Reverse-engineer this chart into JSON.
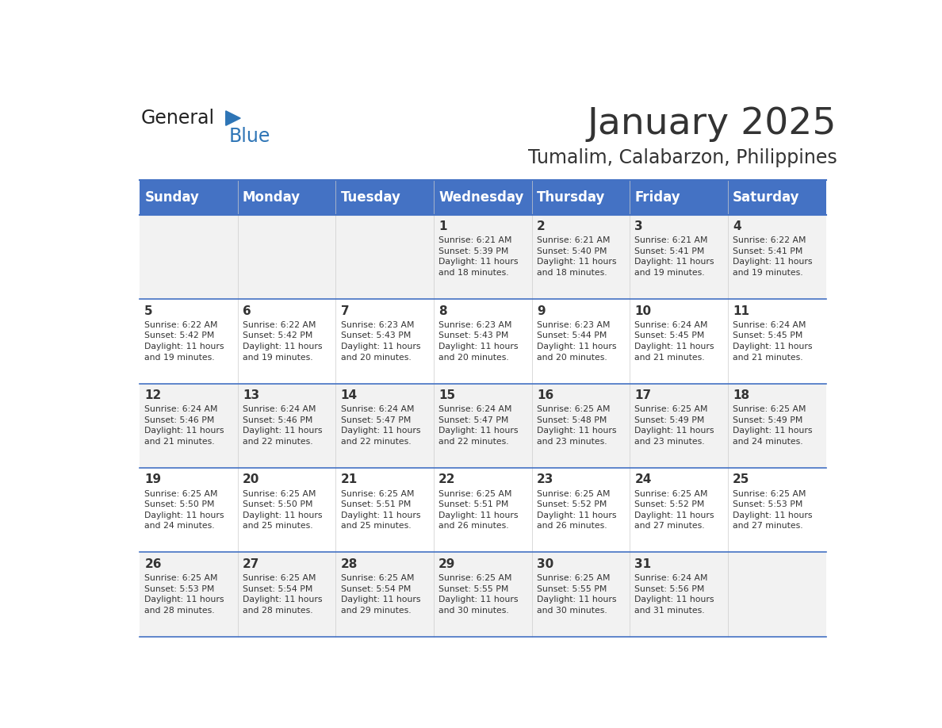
{
  "title": "January 2025",
  "subtitle": "Tumalim, Calabarzon, Philippines",
  "header_bg": "#4472C4",
  "header_text_color": "#FFFFFF",
  "cell_bg_odd": "#F2F2F2",
  "cell_bg_even": "#FFFFFF",
  "border_color": "#4472C4",
  "text_color": "#333333",
  "days_of_week": [
    "Sunday",
    "Monday",
    "Tuesday",
    "Wednesday",
    "Thursday",
    "Friday",
    "Saturday"
  ],
  "weeks": [
    [
      {
        "day": "",
        "info": ""
      },
      {
        "day": "",
        "info": ""
      },
      {
        "day": "",
        "info": ""
      },
      {
        "day": "1",
        "info": "Sunrise: 6:21 AM\nSunset: 5:39 PM\nDaylight: 11 hours\nand 18 minutes."
      },
      {
        "day": "2",
        "info": "Sunrise: 6:21 AM\nSunset: 5:40 PM\nDaylight: 11 hours\nand 18 minutes."
      },
      {
        "day": "3",
        "info": "Sunrise: 6:21 AM\nSunset: 5:41 PM\nDaylight: 11 hours\nand 19 minutes."
      },
      {
        "day": "4",
        "info": "Sunrise: 6:22 AM\nSunset: 5:41 PM\nDaylight: 11 hours\nand 19 minutes."
      }
    ],
    [
      {
        "day": "5",
        "info": "Sunrise: 6:22 AM\nSunset: 5:42 PM\nDaylight: 11 hours\nand 19 minutes."
      },
      {
        "day": "6",
        "info": "Sunrise: 6:22 AM\nSunset: 5:42 PM\nDaylight: 11 hours\nand 19 minutes."
      },
      {
        "day": "7",
        "info": "Sunrise: 6:23 AM\nSunset: 5:43 PM\nDaylight: 11 hours\nand 20 minutes."
      },
      {
        "day": "8",
        "info": "Sunrise: 6:23 AM\nSunset: 5:43 PM\nDaylight: 11 hours\nand 20 minutes."
      },
      {
        "day": "9",
        "info": "Sunrise: 6:23 AM\nSunset: 5:44 PM\nDaylight: 11 hours\nand 20 minutes."
      },
      {
        "day": "10",
        "info": "Sunrise: 6:24 AM\nSunset: 5:45 PM\nDaylight: 11 hours\nand 21 minutes."
      },
      {
        "day": "11",
        "info": "Sunrise: 6:24 AM\nSunset: 5:45 PM\nDaylight: 11 hours\nand 21 minutes."
      }
    ],
    [
      {
        "day": "12",
        "info": "Sunrise: 6:24 AM\nSunset: 5:46 PM\nDaylight: 11 hours\nand 21 minutes."
      },
      {
        "day": "13",
        "info": "Sunrise: 6:24 AM\nSunset: 5:46 PM\nDaylight: 11 hours\nand 22 minutes."
      },
      {
        "day": "14",
        "info": "Sunrise: 6:24 AM\nSunset: 5:47 PM\nDaylight: 11 hours\nand 22 minutes."
      },
      {
        "day": "15",
        "info": "Sunrise: 6:24 AM\nSunset: 5:47 PM\nDaylight: 11 hours\nand 22 minutes."
      },
      {
        "day": "16",
        "info": "Sunrise: 6:25 AM\nSunset: 5:48 PM\nDaylight: 11 hours\nand 23 minutes."
      },
      {
        "day": "17",
        "info": "Sunrise: 6:25 AM\nSunset: 5:49 PM\nDaylight: 11 hours\nand 23 minutes."
      },
      {
        "day": "18",
        "info": "Sunrise: 6:25 AM\nSunset: 5:49 PM\nDaylight: 11 hours\nand 24 minutes."
      }
    ],
    [
      {
        "day": "19",
        "info": "Sunrise: 6:25 AM\nSunset: 5:50 PM\nDaylight: 11 hours\nand 24 minutes."
      },
      {
        "day": "20",
        "info": "Sunrise: 6:25 AM\nSunset: 5:50 PM\nDaylight: 11 hours\nand 25 minutes."
      },
      {
        "day": "21",
        "info": "Sunrise: 6:25 AM\nSunset: 5:51 PM\nDaylight: 11 hours\nand 25 minutes."
      },
      {
        "day": "22",
        "info": "Sunrise: 6:25 AM\nSunset: 5:51 PM\nDaylight: 11 hours\nand 26 minutes."
      },
      {
        "day": "23",
        "info": "Sunrise: 6:25 AM\nSunset: 5:52 PM\nDaylight: 11 hours\nand 26 minutes."
      },
      {
        "day": "24",
        "info": "Sunrise: 6:25 AM\nSunset: 5:52 PM\nDaylight: 11 hours\nand 27 minutes."
      },
      {
        "day": "25",
        "info": "Sunrise: 6:25 AM\nSunset: 5:53 PM\nDaylight: 11 hours\nand 27 minutes."
      }
    ],
    [
      {
        "day": "26",
        "info": "Sunrise: 6:25 AM\nSunset: 5:53 PM\nDaylight: 11 hours\nand 28 minutes."
      },
      {
        "day": "27",
        "info": "Sunrise: 6:25 AM\nSunset: 5:54 PM\nDaylight: 11 hours\nand 28 minutes."
      },
      {
        "day": "28",
        "info": "Sunrise: 6:25 AM\nSunset: 5:54 PM\nDaylight: 11 hours\nand 29 minutes."
      },
      {
        "day": "29",
        "info": "Sunrise: 6:25 AM\nSunset: 5:55 PM\nDaylight: 11 hours\nand 30 minutes."
      },
      {
        "day": "30",
        "info": "Sunrise: 6:25 AM\nSunset: 5:55 PM\nDaylight: 11 hours\nand 30 minutes."
      },
      {
        "day": "31",
        "info": "Sunrise: 6:24 AM\nSunset: 5:56 PM\nDaylight: 11 hours\nand 31 minutes."
      },
      {
        "day": "",
        "info": ""
      }
    ]
  ],
  "logo_general_color": "#222222",
  "logo_blue_color": "#2E75B6",
  "logo_triangle_color": "#2E75B6"
}
